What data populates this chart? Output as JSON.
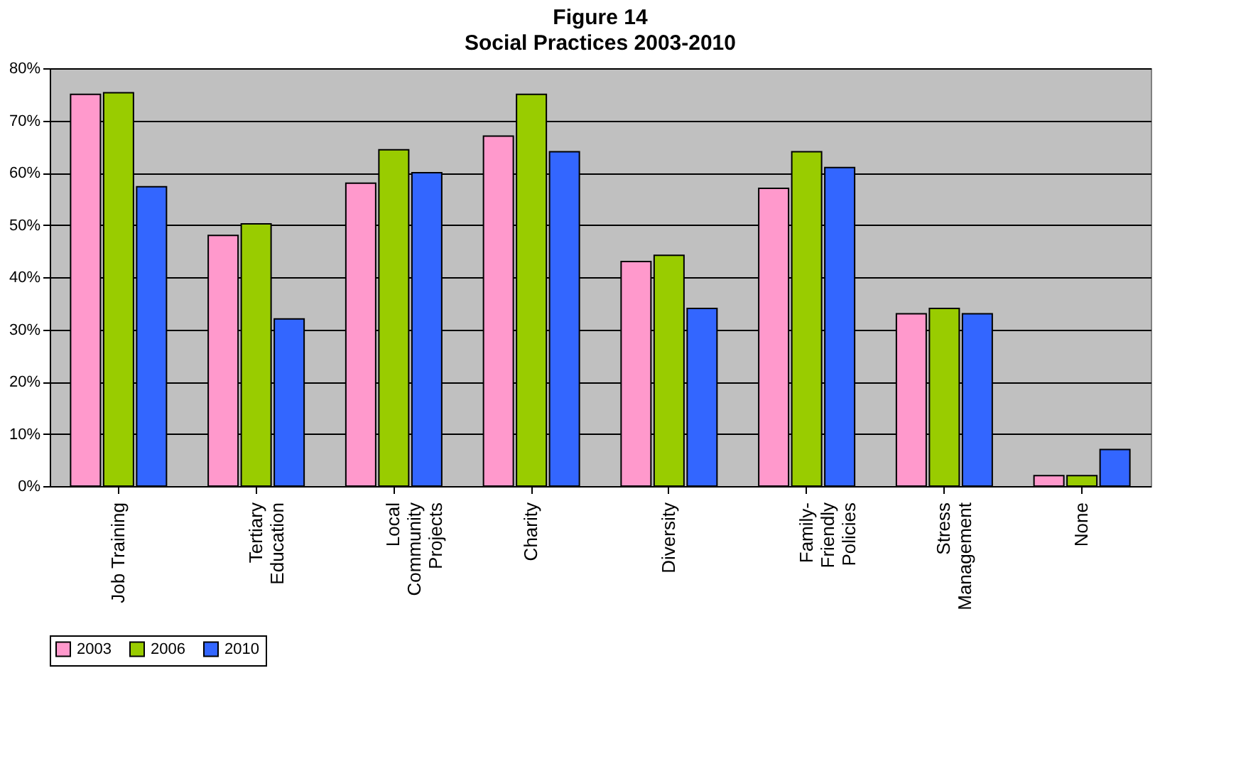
{
  "chart_data": {
    "type": "bar",
    "title": "Figure 14",
    "subtitle": "Social Practices    2003-2010",
    "categories": [
      "Job Training",
      "Tertiary\nEducation",
      "Local\nCommunity\nProjects",
      "Charity",
      "Diversity",
      "Family-\nFriendly\nPolicies",
      "Stress\nManagement",
      "None"
    ],
    "series": [
      {
        "name": "2003",
        "color": "#ff99cc",
        "values": [
          75,
          48,
          58,
          67,
          43,
          57,
          33,
          2
        ]
      },
      {
        "name": "2006",
        "color": "#99cc00",
        "values": [
          75.3,
          50.2,
          64.4,
          75,
          44.2,
          64,
          34,
          2
        ]
      },
      {
        "name": "2010",
        "color": "#3366ff",
        "values": [
          57.3,
          32,
          60,
          64,
          34,
          61,
          33,
          7
        ]
      }
    ],
    "ylim": [
      0,
      80
    ],
    "yticks": [
      {
        "value": 0,
        "label": "0%"
      },
      {
        "value": 10,
        "label": "10%"
      },
      {
        "value": 20,
        "label": "20%"
      },
      {
        "value": 30,
        "label": "30%"
      },
      {
        "value": 40,
        "label": "40%"
      },
      {
        "value": 50,
        "label": "50%"
      },
      {
        "value": 60,
        "label": "60%"
      },
      {
        "value": 70,
        "label": "70%"
      },
      {
        "value": 80,
        "label": "80%"
      }
    ],
    "grid": "y",
    "legend": "bottom"
  }
}
